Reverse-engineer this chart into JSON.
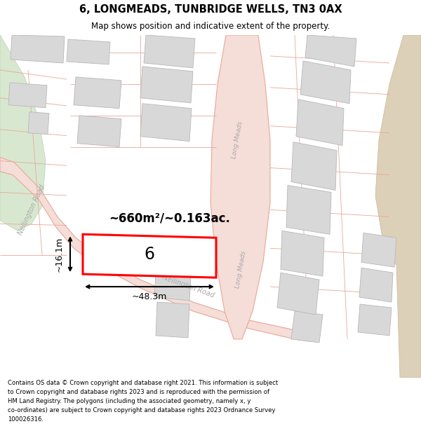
{
  "title": "6, LONGMEADS, TUNBRIDGE WELLS, TN3 0AX",
  "subtitle": "Map shows position and indicative extent of the property.",
  "footer": "Contains OS data © Crown copyright and database right 2021. This information is subject\nto Crown copyright and database rights 2023 and is reproduced with the permission of\nHM Land Registry. The polygons (including the associated geometry, namely x, y\nco-ordinates) are subject to Crown copyright and database rights 2023 Ordnance Survey\n100026316.",
  "area_label": "~660m²/~0.163ac.",
  "width_label": "~48.3m",
  "height_label": "~16.1m",
  "plot_number": "6",
  "map_bg": "#f8f8f8",
  "road_fill": "#f5ddd8",
  "road_edge": "#e8a898",
  "building_fill": "#d8d8d8",
  "building_edge": "#b8b8b8",
  "green_fill": "#d8e8d0",
  "green_edge": "#b8d0b0",
  "tan_fill": "#ddd0b8",
  "tan_edge": "#c8b898",
  "highlight_fill": "#ffffff",
  "highlight_edge": "#ff0000",
  "parcel_edge": "#e8a898",
  "road_label": "#aaaaaa",
  "dim_color": "#000000"
}
